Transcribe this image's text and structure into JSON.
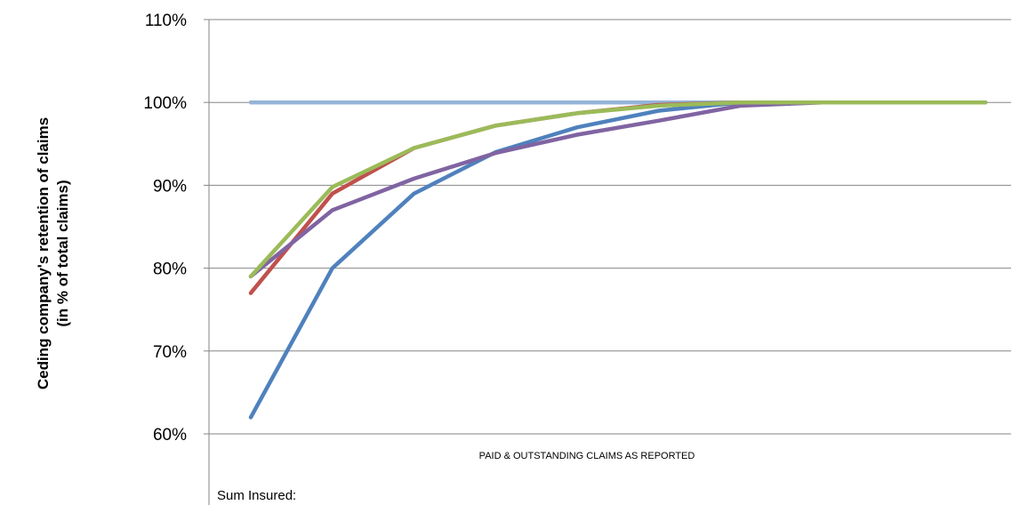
{
  "chart_data": {
    "type": "line",
    "ylabel_line1": "Ceding company's  retention of claims",
    "ylabel_line2": "(in % of total claims)",
    "xlabel": "Sum Insured:",
    "annotation": "PAID & OUTSTANDING CLAIMS AS REPORTED",
    "ylim": [
      0.5,
      1.1
    ],
    "yticks": [
      {
        "value": 1.1,
        "label": "110%"
      },
      {
        "value": 1.0,
        "label": "100%"
      },
      {
        "value": 0.9,
        "label": "90%"
      },
      {
        "value": 0.8,
        "label": "80%"
      },
      {
        "value": 0.7,
        "label": "70%"
      },
      {
        "value": 0.6,
        "label": "60%"
      }
    ],
    "grid": true,
    "x": [
      1,
      2,
      3,
      4,
      5,
      6,
      7,
      8,
      9,
      10
    ],
    "series": [
      {
        "color": "#95b3d7",
        "values": [
          1.0,
          1.0,
          1.0,
          1.0,
          1.0,
          1.0,
          1.0,
          1.0,
          1.0,
          1.0
        ]
      },
      {
        "color": "#4f81bd",
        "values": [
          0.62,
          0.8,
          0.89,
          0.94,
          0.97,
          0.99,
          1.0,
          1.0,
          1.0,
          1.0
        ]
      },
      {
        "color": "#c0504d",
        "values": [
          0.77,
          0.89,
          0.945,
          0.972,
          0.987,
          0.997,
          1.0,
          1.0,
          1.0,
          1.0
        ]
      },
      {
        "color": "#8064a2",
        "values": [
          0.79,
          0.87,
          0.908,
          0.939,
          0.961,
          0.978,
          0.996,
          1.0,
          1.0,
          1.0
        ]
      },
      {
        "color": "#9bbb59",
        "values": [
          0.79,
          0.898,
          0.945,
          0.972,
          0.987,
          0.996,
          1.0,
          1.0,
          1.0,
          1.0
        ]
      }
    ]
  }
}
